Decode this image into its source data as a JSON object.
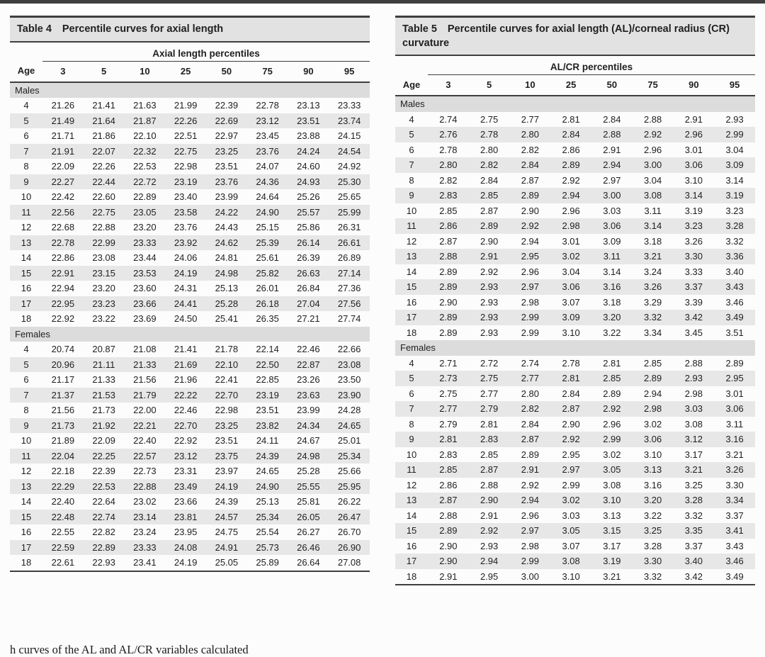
{
  "page": {
    "bottom_partial_text": "h curves of the AL and AL/CR variables calculated"
  },
  "colors": {
    "top_rule": "#3e3e3e",
    "title_band_bg": "#e2e2e2",
    "section_band_bg": "#dcdcdc",
    "stripe_bg": "#e7e7e7",
    "rule_dark": "#3e3e3e",
    "text": "#1f1f1f"
  },
  "tables": [
    {
      "label": "Table 4",
      "title": "Percentile curves for axial length",
      "span_header": "Axial length percentiles",
      "age_header": "Age",
      "percentile_headers": [
        "3",
        "5",
        "10",
        "25",
        "50",
        "75",
        "90",
        "95"
      ],
      "sections": [
        {
          "name": "Males",
          "rows": [
            {
              "age": "4",
              "values": [
                "21.26",
                "21.41",
                "21.63",
                "21.99",
                "22.39",
                "22.78",
                "23.13",
                "23.33"
              ]
            },
            {
              "age": "5",
              "values": [
                "21.49",
                "21.64",
                "21.87",
                "22.26",
                "22.69",
                "23.12",
                "23.51",
                "23.74"
              ]
            },
            {
              "age": "6",
              "values": [
                "21.71",
                "21.86",
                "22.10",
                "22.51",
                "22.97",
                "23.45",
                "23.88",
                "24.15"
              ]
            },
            {
              "age": "7",
              "values": [
                "21.91",
                "22.07",
                "22.32",
                "22.75",
                "23.25",
                "23.76",
                "24.24",
                "24.54"
              ]
            },
            {
              "age": "8",
              "values": [
                "22.09",
                "22.26",
                "22.53",
                "22.98",
                "23.51",
                "24.07",
                "24.60",
                "24.92"
              ]
            },
            {
              "age": "9",
              "values": [
                "22.27",
                "22.44",
                "22.72",
                "23.19",
                "23.76",
                "24.36",
                "24.93",
                "25.30"
              ]
            },
            {
              "age": "10",
              "values": [
                "22.42",
                "22.60",
                "22.89",
                "23.40",
                "23.99",
                "24.64",
                "25.26",
                "25.65"
              ]
            },
            {
              "age": "11",
              "values": [
                "22.56",
                "22.75",
                "23.05",
                "23.58",
                "24.22",
                "24.90",
                "25.57",
                "25.99"
              ]
            },
            {
              "age": "12",
              "values": [
                "22.68",
                "22.88",
                "23.20",
                "23.76",
                "24.43",
                "25.15",
                "25.86",
                "26.31"
              ]
            },
            {
              "age": "13",
              "values": [
                "22.78",
                "22.99",
                "23.33",
                "23.92",
                "24.62",
                "25.39",
                "26.14",
                "26.61"
              ]
            },
            {
              "age": "14",
              "values": [
                "22.86",
                "23.08",
                "23.44",
                "24.06",
                "24.81",
                "25.61",
                "26.39",
                "26.89"
              ]
            },
            {
              "age": "15",
              "values": [
                "22.91",
                "23.15",
                "23.53",
                "24.19",
                "24.98",
                "25.82",
                "26.63",
                "27.14"
              ]
            },
            {
              "age": "16",
              "values": [
                "22.94",
                "23.20",
                "23.60",
                "24.31",
                "25.13",
                "26.01",
                "26.84",
                "27.36"
              ]
            },
            {
              "age": "17",
              "values": [
                "22.95",
                "23.23",
                "23.66",
                "24.41",
                "25.28",
                "26.18",
                "27.04",
                "27.56"
              ]
            },
            {
              "age": "18",
              "values": [
                "22.92",
                "23.22",
                "23.69",
                "24.50",
                "25.41",
                "26.35",
                "27.21",
                "27.74"
              ]
            }
          ]
        },
        {
          "name": "Females",
          "rows": [
            {
              "age": "4",
              "values": [
                "20.74",
                "20.87",
                "21.08",
                "21.41",
                "21.78",
                "22.14",
                "22.46",
                "22.66"
              ]
            },
            {
              "age": "5",
              "values": [
                "20.96",
                "21.11",
                "21.33",
                "21.69",
                "22.10",
                "22.50",
                "22.87",
                "23.08"
              ]
            },
            {
              "age": "6",
              "values": [
                "21.17",
                "21.33",
                "21.56",
                "21.96",
                "22.41",
                "22.85",
                "23.26",
                "23.50"
              ]
            },
            {
              "age": "7",
              "values": [
                "21.37",
                "21.53",
                "21.79",
                "22.22",
                "22.70",
                "23.19",
                "23.63",
                "23.90"
              ]
            },
            {
              "age": "8",
              "values": [
                "21.56",
                "21.73",
                "22.00",
                "22.46",
                "22.98",
                "23.51",
                "23.99",
                "24.28"
              ]
            },
            {
              "age": "9",
              "values": [
                "21.73",
                "21.92",
                "22.21",
                "22.70",
                "23.25",
                "23.82",
                "24.34",
                "24.65"
              ]
            },
            {
              "age": "10",
              "values": [
                "21.89",
                "22.09",
                "22.40",
                "22.92",
                "23.51",
                "24.11",
                "24.67",
                "25.01"
              ]
            },
            {
              "age": "11",
              "values": [
                "22.04",
                "22.25",
                "22.57",
                "23.12",
                "23.75",
                "24.39",
                "24.98",
                "25.34"
              ]
            },
            {
              "age": "12",
              "values": [
                "22.18",
                "22.39",
                "22.73",
                "23.31",
                "23.97",
                "24.65",
                "25.28",
                "25.66"
              ]
            },
            {
              "age": "13",
              "values": [
                "22.29",
                "22.53",
                "22.88",
                "23.49",
                "24.19",
                "24.90",
                "25.55",
                "25.95"
              ]
            },
            {
              "age": "14",
              "values": [
                "22.40",
                "22.64",
                "23.02",
                "23.66",
                "24.39",
                "25.13",
                "25.81",
                "26.22"
              ]
            },
            {
              "age": "15",
              "values": [
                "22.48",
                "22.74",
                "23.14",
                "23.81",
                "24.57",
                "25.34",
                "26.05",
                "26.47"
              ]
            },
            {
              "age": "16",
              "values": [
                "22.55",
                "22.82",
                "23.24",
                "23.95",
                "24.75",
                "25.54",
                "26.27",
                "26.70"
              ]
            },
            {
              "age": "17",
              "values": [
                "22.59",
                "22.89",
                "23.33",
                "24.08",
                "24.91",
                "25.73",
                "26.46",
                "26.90"
              ]
            },
            {
              "age": "18",
              "values": [
                "22.61",
                "22.93",
                "23.41",
                "24.19",
                "25.05",
                "25.89",
                "26.64",
                "27.08"
              ]
            }
          ]
        }
      ]
    },
    {
      "label": "Table 5",
      "title": "Percentile curves for axial length (AL)/corneal radius (CR) curvature",
      "span_header": "AL/CR percentiles",
      "age_header": "Age",
      "percentile_headers": [
        "3",
        "5",
        "10",
        "25",
        "50",
        "75",
        "90",
        "95"
      ],
      "sections": [
        {
          "name": "Males",
          "rows": [
            {
              "age": "4",
              "values": [
                "2.74",
                "2.75",
                "2.77",
                "2.81",
                "2.84",
                "2.88",
                "2.91",
                "2.93"
              ]
            },
            {
              "age": "5",
              "values": [
                "2.76",
                "2.78",
                "2.80",
                "2.84",
                "2.88",
                "2.92",
                "2.96",
                "2.99"
              ]
            },
            {
              "age": "6",
              "values": [
                "2.78",
                "2.80",
                "2.82",
                "2.86",
                "2.91",
                "2.96",
                "3.01",
                "3.04"
              ]
            },
            {
              "age": "7",
              "values": [
                "2.80",
                "2.82",
                "2.84",
                "2.89",
                "2.94",
                "3.00",
                "3.06",
                "3.09"
              ]
            },
            {
              "age": "8",
              "values": [
                "2.82",
                "2.84",
                "2.87",
                "2.92",
                "2.97",
                "3.04",
                "3.10",
                "3.14"
              ]
            },
            {
              "age": "9",
              "values": [
                "2.83",
                "2.85",
                "2.89",
                "2.94",
                "3.00",
                "3.08",
                "3.14",
                "3.19"
              ]
            },
            {
              "age": "10",
              "values": [
                "2.85",
                "2.87",
                "2.90",
                "2.96",
                "3.03",
                "3.11",
                "3.19",
                "3.23"
              ]
            },
            {
              "age": "11",
              "values": [
                "2.86",
                "2.89",
                "2.92",
                "2.98",
                "3.06",
                "3.14",
                "3.23",
                "3.28"
              ]
            },
            {
              "age": "12",
              "values": [
                "2.87",
                "2.90",
                "2.94",
                "3.01",
                "3.09",
                "3.18",
                "3.26",
                "3.32"
              ]
            },
            {
              "age": "13",
              "values": [
                "2.88",
                "2.91",
                "2.95",
                "3.02",
                "3.11",
                "3.21",
                "3.30",
                "3.36"
              ]
            },
            {
              "age": "14",
              "values": [
                "2.89",
                "2.92",
                "2.96",
                "3.04",
                "3.14",
                "3.24",
                "3.33",
                "3.40"
              ]
            },
            {
              "age": "15",
              "values": [
                "2.89",
                "2.93",
                "2.97",
                "3.06",
                "3.16",
                "3.26",
                "3.37",
                "3.43"
              ]
            },
            {
              "age": "16",
              "values": [
                "2.90",
                "2.93",
                "2.98",
                "3.07",
                "3.18",
                "3.29",
                "3.39",
                "3.46"
              ]
            },
            {
              "age": "17",
              "values": [
                "2.89",
                "2.93",
                "2.99",
                "3.09",
                "3.20",
                "3.32",
                "3.42",
                "3.49"
              ]
            },
            {
              "age": "18",
              "values": [
                "2.89",
                "2.93",
                "2.99",
                "3.10",
                "3.22",
                "3.34",
                "3.45",
                "3.51"
              ]
            }
          ]
        },
        {
          "name": "Females",
          "rows": [
            {
              "age": "4",
              "values": [
                "2.71",
                "2.72",
                "2.74",
                "2.78",
                "2.81",
                "2.85",
                "2.88",
                "2.89"
              ]
            },
            {
              "age": "5",
              "values": [
                "2.73",
                "2.75",
                "2.77",
                "2.81",
                "2.85",
                "2.89",
                "2.93",
                "2.95"
              ]
            },
            {
              "age": "6",
              "values": [
                "2.75",
                "2.77",
                "2.80",
                "2.84",
                "2.89",
                "2.94",
                "2.98",
                "3.01"
              ]
            },
            {
              "age": "7",
              "values": [
                "2.77",
                "2.79",
                "2.82",
                "2.87",
                "2.92",
                "2.98",
                "3.03",
                "3.06"
              ]
            },
            {
              "age": "8",
              "values": [
                "2.79",
                "2.81",
                "2.84",
                "2.90",
                "2.96",
                "3.02",
                "3.08",
                "3.11"
              ]
            },
            {
              "age": "9",
              "values": [
                "2.81",
                "2.83",
                "2.87",
                "2.92",
                "2.99",
                "3.06",
                "3.12",
                "3.16"
              ]
            },
            {
              "age": "10",
              "values": [
                "2.83",
                "2.85",
                "2.89",
                "2.95",
                "3.02",
                "3.10",
                "3.17",
                "3.21"
              ]
            },
            {
              "age": "11",
              "values": [
                "2.85",
                "2.87",
                "2.91",
                "2.97",
                "3.05",
                "3.13",
                "3.21",
                "3.26"
              ]
            },
            {
              "age": "12",
              "values": [
                "2.86",
                "2.88",
                "2.92",
                "2.99",
                "3.08",
                "3.16",
                "3.25",
                "3.30"
              ]
            },
            {
              "age": "13",
              "values": [
                "2.87",
                "2.90",
                "2.94",
                "3.02",
                "3.10",
                "3.20",
                "3.28",
                "3.34"
              ]
            },
            {
              "age": "14",
              "values": [
                "2.88",
                "2.91",
                "2.96",
                "3.03",
                "3.13",
                "3.22",
                "3.32",
                "3.37"
              ]
            },
            {
              "age": "15",
              "values": [
                "2.89",
                "2.92",
                "2.97",
                "3.05",
                "3.15",
                "3.25",
                "3.35",
                "3.41"
              ]
            },
            {
              "age": "16",
              "values": [
                "2.90",
                "2.93",
                "2.98",
                "3.07",
                "3.17",
                "3.28",
                "3.37",
                "3.43"
              ]
            },
            {
              "age": "17",
              "values": [
                "2.90",
                "2.94",
                "2.99",
                "3.08",
                "3.19",
                "3.30",
                "3.40",
                "3.46"
              ]
            },
            {
              "age": "18",
              "values": [
                "2.91",
                "2.95",
                "3.00",
                "3.10",
                "3.21",
                "3.32",
                "3.42",
                "3.49"
              ]
            }
          ]
        }
      ]
    }
  ]
}
